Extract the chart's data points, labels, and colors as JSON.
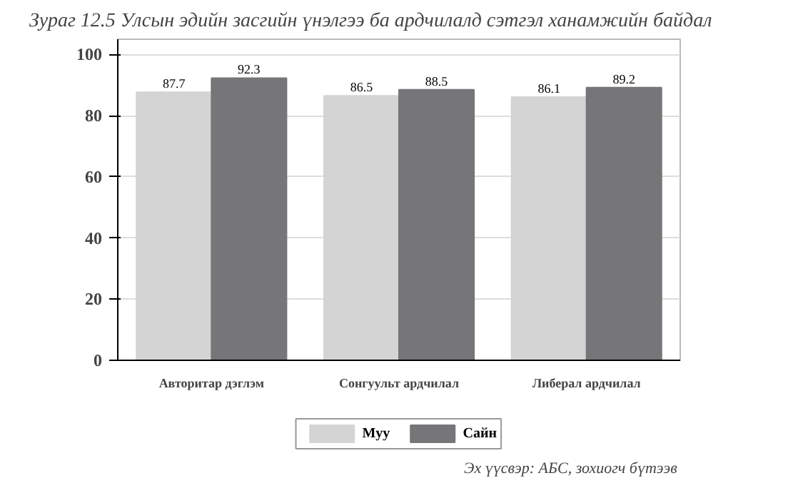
{
  "chart_data": {
    "type": "bar",
    "title": "Зураг 12.5 Улсын эдийн засгийн үнэлгээ ба ардчилалд сэтгэл ханамжийн байдал",
    "categories": [
      "Авторитар дэглэм",
      "Сонгуульт ардчилал",
      "Либерал ардчилал"
    ],
    "series": [
      {
        "name": "Муу",
        "color": "#d4d4d4",
        "values": [
          87.7,
          86.5,
          86.1
        ]
      },
      {
        "name": "Сайн",
        "color": "#767678",
        "values": [
          92.3,
          88.5,
          89.2
        ]
      }
    ],
    "ylim": [
      0,
      105
    ],
    "yticks": [
      0,
      20,
      40,
      60,
      80,
      100
    ],
    "grid": "y",
    "legend": "bottom",
    "data_labels": true,
    "annotations": [
      "Эх үүсвэр: АБС, зохиогч бүтээв"
    ]
  }
}
